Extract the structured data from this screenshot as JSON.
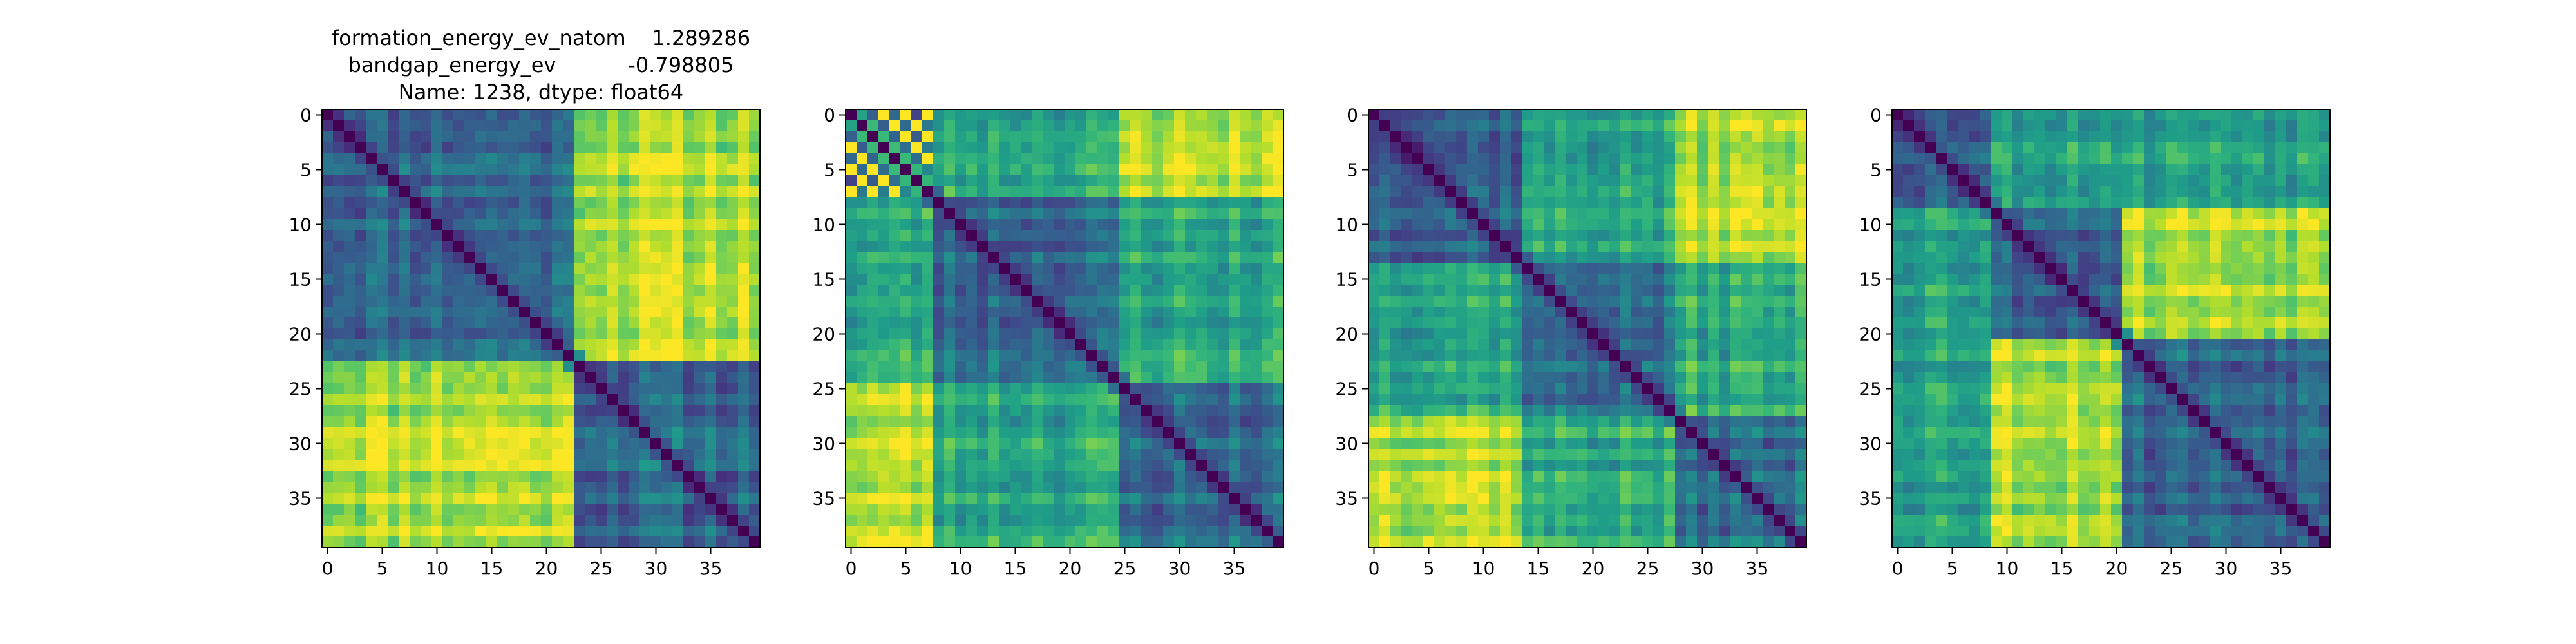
{
  "figure": {
    "title_lines": [
      "formation_energy_ev_natom    1.289286",
      "bandgap_energy_ev           -0.798805",
      "Name: 1238, dtype: float64"
    ]
  },
  "chart_data": [
    {
      "type": "heatmap",
      "title": "",
      "size": 40,
      "colormap": "viridis",
      "blocks": [
        [
          0,
          23
        ],
        [
          23,
          40
        ]
      ],
      "hot_pair": [
        1,
        0
      ],
      "xticks": [
        0,
        5,
        10,
        15,
        20,
        25,
        30,
        35
      ],
      "yticks": [
        0,
        5,
        10,
        15,
        20,
        25,
        30,
        35
      ],
      "seed": 11
    },
    {
      "type": "heatmap",
      "title": "",
      "size": 40,
      "colormap": "viridis",
      "blocks": [
        [
          0,
          8
        ],
        [
          8,
          25
        ],
        [
          25,
          40
        ]
      ],
      "hot_pair": [
        0,
        2
      ],
      "checker": [
        0,
        8
      ],
      "xticks": [
        0,
        5,
        10,
        15,
        20,
        25,
        30,
        35
      ],
      "yticks": [
        0,
        5,
        10,
        15,
        20,
        25,
        30,
        35
      ],
      "seed": 23
    },
    {
      "type": "heatmap",
      "title": "",
      "size": 40,
      "colormap": "viridis",
      "blocks": [
        [
          0,
          14
        ],
        [
          14,
          28
        ],
        [
          28,
          40
        ]
      ],
      "hot_pair": [
        0,
        2
      ],
      "xticks": [
        0,
        5,
        10,
        15,
        20,
        25,
        30,
        35
      ],
      "yticks": [
        0,
        5,
        10,
        15,
        20,
        25,
        30,
        35
      ],
      "seed": 37
    },
    {
      "type": "heatmap",
      "title": "",
      "size": 40,
      "colormap": "viridis",
      "blocks": [
        [
          0,
          9
        ],
        [
          9,
          21
        ],
        [
          21,
          40
        ]
      ],
      "hot_pair": [
        1,
        2
      ],
      "xticks": [
        0,
        5,
        10,
        15,
        20,
        25,
        30,
        35
      ],
      "yticks": [
        0,
        5,
        10,
        15,
        20,
        25,
        30,
        35
      ],
      "seed": 53
    }
  ]
}
